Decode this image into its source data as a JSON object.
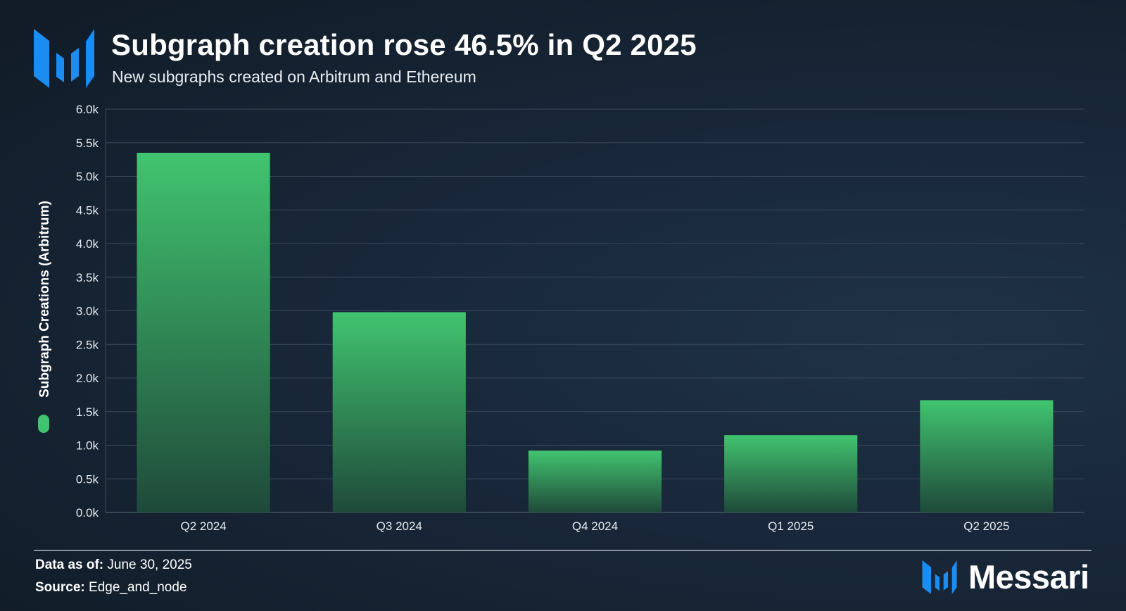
{
  "header": {
    "title": "Subgraph creation rose 46.5% in Q2 2025",
    "subtitle": "New subgraphs created on Arbitrum and Ethereum"
  },
  "colors": {
    "bar_top": "#41c46f",
    "bar_bottom": "#1f4a3a",
    "brand_blue": "#1b8cf0",
    "grid": "#3a4a5a"
  },
  "chart_data": {
    "type": "bar",
    "title": "Subgraph creation rose 46.5% in Q2 2025",
    "subtitle": "New subgraphs created on Arbitrum and Ethereum",
    "categories": [
      "Q2 2024",
      "Q3 2024",
      "Q4 2024",
      "Q1 2025",
      "Q2 2025"
    ],
    "series": [
      {
        "name": "Subgraph Creations (Arbitrum)",
        "values": [
          5350,
          2980,
          920,
          1150,
          1670
        ]
      }
    ],
    "ylabel": "Subgraph Creations (Arbitrum)",
    "xlabel": "",
    "ylim": [
      0,
      6000
    ],
    "yticks": [
      0,
      500,
      1000,
      1500,
      2000,
      2500,
      3000,
      3500,
      4000,
      4500,
      5000,
      5500,
      6000
    ],
    "ytick_labels": [
      "0.0k",
      "0.5k",
      "1.0k",
      "1.5k",
      "2.0k",
      "2.5k",
      "3.0k",
      "3.5k",
      "4.0k",
      "4.5k",
      "5.0k",
      "5.5k",
      "6.0k"
    ],
    "grid": true,
    "legend": "left-vertical"
  },
  "footer": {
    "date_label": "Data as of:",
    "date_value": "June 30, 2025",
    "source_label": "Source:",
    "source_value": "Edge_and_node",
    "brand": "Messari"
  }
}
